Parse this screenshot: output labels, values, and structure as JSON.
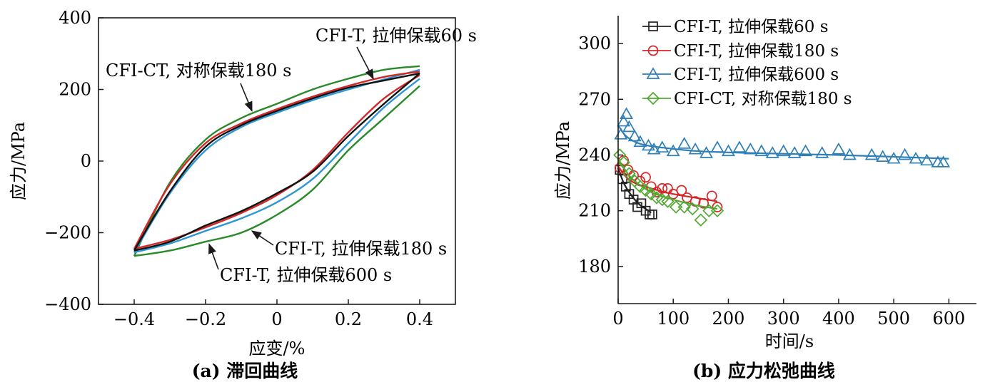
{
  "chart_data": [
    {
      "type": "line",
      "caption": "(a) 滞回曲线",
      "xlabel": "应变/%",
      "ylabel": "应力/MPa",
      "xlim": [
        -0.5,
        0.5
      ],
      "ylim": [
        -400,
        400
      ],
      "xticks": [
        "−0.4",
        "−0.2",
        "0",
        "0.2",
        "0.4"
      ],
      "xtick_values": [
        -0.4,
        -0.2,
        0,
        0.2,
        0.4
      ],
      "yticks": [
        "−400",
        "−200",
        "0",
        "200",
        "400"
      ],
      "ytick_values": [
        -400,
        -200,
        0,
        200,
        400
      ],
      "series": [
        {
          "id": "ct180",
          "color": "#2a8a2a",
          "upper": [
            [
              -0.4,
              -265
            ],
            [
              -0.3,
              -60
            ],
            [
              -0.2,
              60
            ],
            [
              -0.1,
              120
            ],
            [
              0,
              160
            ],
            [
              0.1,
              200
            ],
            [
              0.2,
              230
            ],
            [
              0.3,
              255
            ],
            [
              0.4,
              265
            ]
          ],
          "lower": [
            [
              0.4,
              210
            ],
            [
              0.3,
              120
            ],
            [
              0.2,
              30
            ],
            [
              0.1,
              -80
            ],
            [
              0,
              -150
            ],
            [
              -0.1,
              -200
            ],
            [
              -0.2,
              -225
            ],
            [
              -0.3,
              -250
            ],
            [
              -0.4,
              -265
            ]
          ]
        },
        {
          "id": "t600",
          "color": "#2e96d2",
          "upper": [
            [
              -0.4,
              -255
            ],
            [
              -0.3,
              -90
            ],
            [
              -0.2,
              30
            ],
            [
              -0.1,
              95
            ],
            [
              0,
              135
            ],
            [
              0.1,
              170
            ],
            [
              0.2,
              200
            ],
            [
              0.3,
              228
            ],
            [
              0.4,
              255
            ]
          ],
          "lower": [
            [
              0.4,
              230
            ],
            [
              0.3,
              150
            ],
            [
              0.2,
              50
            ],
            [
              0.1,
              -50
            ],
            [
              0,
              -115
            ],
            [
              -0.1,
              -160
            ],
            [
              -0.2,
              -195
            ],
            [
              -0.3,
              -230
            ],
            [
              -0.4,
              -255
            ]
          ]
        },
        {
          "id": "t180",
          "color": "#d62728",
          "upper": [
            [
              -0.4,
              -245
            ],
            [
              -0.3,
              -65
            ],
            [
              -0.2,
              50
            ],
            [
              -0.1,
              105
            ],
            [
              0,
              145
            ],
            [
              0.1,
              180
            ],
            [
              0.2,
              210
            ],
            [
              0.3,
              235
            ],
            [
              0.4,
              250
            ]
          ],
          "lower": [
            [
              0.4,
              240
            ],
            [
              0.3,
              175
            ],
            [
              0.2,
              80
            ],
            [
              0.1,
              -25
            ],
            [
              0,
              -95
            ],
            [
              -0.1,
              -145
            ],
            [
              -0.2,
              -185
            ],
            [
              -0.3,
              -220
            ],
            [
              -0.4,
              -245
            ]
          ]
        },
        {
          "id": "t60",
          "color": "#111111",
          "upper": [
            [
              -0.4,
              -250
            ],
            [
              -0.3,
              -85
            ],
            [
              -0.2,
              40
            ],
            [
              -0.1,
              100
            ],
            [
              0,
              140
            ],
            [
              0.1,
              175
            ],
            [
              0.2,
              205
            ],
            [
              0.3,
              225
            ],
            [
              0.4,
              245
            ]
          ],
          "lower": [
            [
              0.4,
              245
            ],
            [
              0.3,
              160
            ],
            [
              0.2,
              70
            ],
            [
              0.1,
              -30
            ],
            [
              0,
              -90
            ],
            [
              -0.1,
              -140
            ],
            [
              -0.2,
              -180
            ],
            [
              -0.3,
              -225
            ],
            [
              -0.4,
              -250
            ]
          ]
        }
      ],
      "annotations": [
        {
          "id": "t60",
          "text": "CFI-T, 拉伸保载60 s",
          "target": [
            0.27,
            230
          ]
        },
        {
          "id": "ct180",
          "text": "CFI-CT, 对称保载180 s",
          "target": [
            -0.07,
            140
          ]
        },
        {
          "id": "t180",
          "text": "CFI-T, 拉伸保载180 s",
          "target": [
            -0.07,
            -195
          ]
        },
        {
          "id": "t600",
          "text": "CFI-T, 拉伸保载600 s",
          "target": [
            -0.19,
            -232
          ]
        }
      ]
    },
    {
      "type": "scatter",
      "caption": "(b) 应力松弛曲线",
      "xlabel": "时间/s",
      "ylabel": "应力/MPa",
      "xlim": [
        0,
        650
      ],
      "ylim": [
        160,
        315
      ],
      "xticks": [
        "0",
        "100",
        "200",
        "300",
        "400",
        "500",
        "600"
      ],
      "xtick_values": [
        0,
        100,
        200,
        300,
        400,
        500,
        600
      ],
      "yticks": [
        "180",
        "210",
        "240",
        "270",
        "300"
      ],
      "ytick_values": [
        180,
        210,
        240,
        270,
        300
      ],
      "series": [
        {
          "name": "CFI-T, 拉伸保载60 s",
          "marker": "square",
          "color": "#222222",
          "points": [
            [
              3,
              232
            ],
            [
              8,
              227
            ],
            [
              14,
              223
            ],
            [
              20,
              219
            ],
            [
              28,
              216
            ],
            [
              35,
              212
            ],
            [
              42,
              214
            ],
            [
              50,
              210
            ],
            [
              57,
              208
            ],
            [
              62,
              208
            ]
          ],
          "fit": [
            [
              0,
              233
            ],
            [
              10,
              225
            ],
            [
              20,
              220
            ],
            [
              30,
              216
            ],
            [
              40,
              213
            ],
            [
              50,
              211
            ],
            [
              60,
              209
            ]
          ]
        },
        {
          "name": "CFI-T, 拉伸保载180 s",
          "marker": "circle",
          "color": "#d62728",
          "points": [
            [
              3,
              233
            ],
            [
              10,
              237
            ],
            [
              18,
              232
            ],
            [
              28,
              229
            ],
            [
              40,
              226
            ],
            [
              50,
              228
            ],
            [
              60,
              223
            ],
            [
              70,
              220
            ],
            [
              80,
              222
            ],
            [
              90,
              222
            ],
            [
              100,
              219
            ],
            [
              115,
              221
            ],
            [
              125,
              217
            ],
            [
              140,
              215
            ],
            [
              155,
              214
            ],
            [
              170,
              218
            ],
            [
              180,
              212
            ]
          ],
          "fit": [
            [
              0,
              234
            ],
            [
              15,
              228
            ],
            [
              30,
              225
            ],
            [
              60,
              222
            ],
            [
              100,
              219
            ],
            [
              140,
              217
            ],
            [
              180,
              215
            ]
          ]
        },
        {
          "name": "CFI-T, 拉伸保载600 s",
          "marker": "triangle",
          "color": "#2e7fb8",
          "points": [
            [
              5,
              251
            ],
            [
              10,
              258
            ],
            [
              15,
              262
            ],
            [
              20,
              255
            ],
            [
              30,
              250
            ],
            [
              40,
              247
            ],
            [
              55,
              245
            ],
            [
              65,
              243
            ],
            [
              80,
              244
            ],
            [
              100,
              242
            ],
            [
              120,
              246
            ],
            [
              140,
              243
            ],
            [
              160,
              241
            ],
            [
              180,
              244
            ],
            [
              200,
              242
            ],
            [
              220,
              244
            ],
            [
              240,
              243
            ],
            [
              260,
              242
            ],
            [
              280,
              241
            ],
            [
              300,
              242
            ],
            [
              320,
              241
            ],
            [
              340,
              242
            ],
            [
              370,
              241
            ],
            [
              400,
              243
            ],
            [
              420,
              240
            ],
            [
              460,
              240
            ],
            [
              480,
              239
            ],
            [
              500,
              238
            ],
            [
              520,
              240
            ],
            [
              540,
              238
            ],
            [
              560,
              237
            ],
            [
              580,
              236
            ],
            [
              590,
              236
            ]
          ],
          "fit": [
            [
              0,
              256
            ],
            [
              15,
              250
            ],
            [
              40,
              246
            ],
            [
              80,
              244
            ],
            [
              150,
              242
            ],
            [
              250,
              241
            ],
            [
              400,
              240
            ],
            [
              600,
              238
            ]
          ]
        },
        {
          "name": "CFI-CT, 对称保载180 s",
          "marker": "diamond",
          "color": "#52a832",
          "points": [
            [
              3,
              240
            ],
            [
              10,
              236
            ],
            [
              20,
              230
            ],
            [
              30,
              226
            ],
            [
              40,
              223
            ],
            [
              50,
              221
            ],
            [
              60,
              219
            ],
            [
              70,
              217
            ],
            [
              80,
              216
            ],
            [
              90,
              215
            ],
            [
              105,
              212
            ],
            [
              120,
              212
            ],
            [
              135,
              211
            ],
            [
              150,
              205
            ],
            [
              165,
              210
            ],
            [
              180,
              210
            ]
          ],
          "fit": [
            [
              0,
              238
            ],
            [
              15,
              231
            ],
            [
              30,
              226
            ],
            [
              60,
              220
            ],
            [
              100,
              216
            ],
            [
              140,
              213
            ],
            [
              180,
              211
            ]
          ]
        }
      ]
    }
  ]
}
